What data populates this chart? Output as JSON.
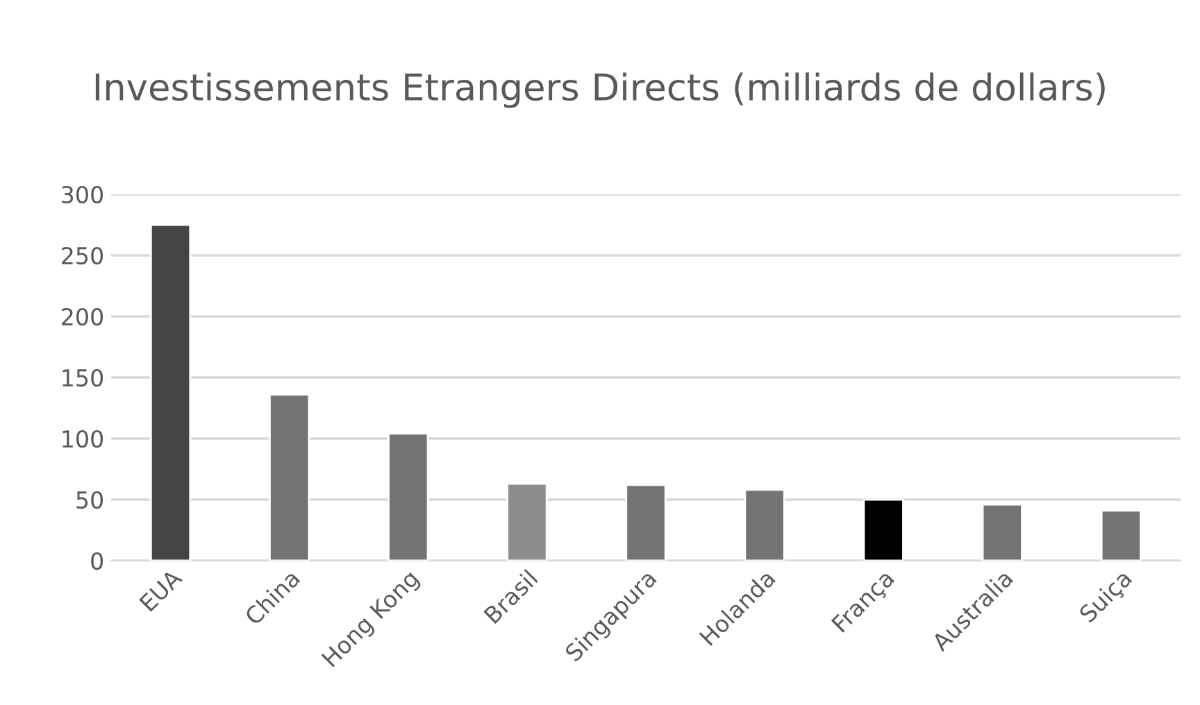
{
  "chart_data": {
    "type": "bar",
    "title": "Investissements Etrangers Directs (milliards de dollars)",
    "categories": [
      "EUA",
      "China",
      "Hong Kong",
      "Brasil",
      "Singapura",
      "Holanda",
      "França",
      "Australia",
      "Suiça"
    ],
    "values": [
      275,
      136,
      104,
      63,
      62,
      58,
      50,
      46,
      41
    ],
    "colors": [
      "#444444",
      "#737373",
      "#737373",
      "#8c8c8c",
      "#737373",
      "#737373",
      "#000000",
      "#737373",
      "#737373"
    ],
    "ylim": [
      0,
      300
    ],
    "yticks": [
      0,
      50,
      100,
      150,
      200,
      250,
      300
    ],
    "grid": "y"
  }
}
